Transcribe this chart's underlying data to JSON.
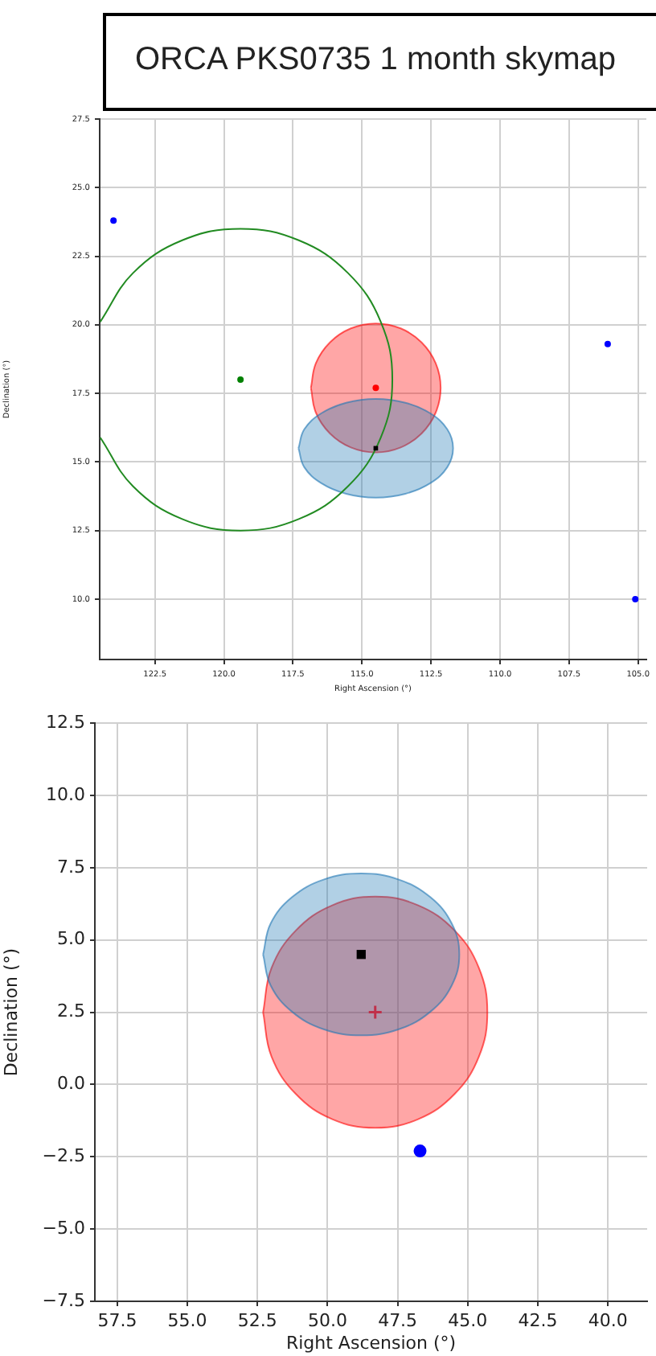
{
  "chart_data": [
    {
      "type": "scatter",
      "title": "ORCA PKS0735 1 month skymap",
      "xlabel": "Right Ascension (°)",
      "ylabel": "Declination (°)",
      "grid": true,
      "xlim": [
        124.5,
        104.7
      ],
      "ylim": [
        7.8,
        27.5
      ],
      "xticks": [
        {
          "value": 122.5,
          "label": "122.5"
        },
        {
          "value": 120,
          "label": "120.0"
        },
        {
          "value": 117.5,
          "label": "117.5"
        },
        {
          "value": 115,
          "label": "115.0"
        },
        {
          "value": 112.5,
          "label": "112.5"
        },
        {
          "value": 110,
          "label": "110.0"
        },
        {
          "value": 107.5,
          "label": "107.5"
        },
        {
          "value": 105,
          "label": "105.0"
        }
      ],
      "yticks": [
        {
          "value": 10,
          "label": "10.0"
        },
        {
          "value": 12.5,
          "label": "12.5"
        },
        {
          "value": 15,
          "label": "15.0"
        },
        {
          "value": 17.5,
          "label": "17.5"
        },
        {
          "value": 20,
          "label": "20.0"
        },
        {
          "value": 22.5,
          "label": "22.5"
        },
        {
          "value": 25,
          "label": "25.0"
        },
        {
          "value": 27.5,
          "label": "27.5"
        }
      ],
      "series": [
        {
          "type": "area",
          "color": "#1f77b4",
          "x": [
            117.3,
            117.09,
            116.48,
            115.57,
            114.5,
            113.43,
            112.52,
            111.91,
            111.7,
            111.91,
            112.52,
            113.43,
            114.5,
            115.57,
            116.48,
            117.09,
            117.3
          ],
          "values": [
            15.5,
            16.19,
            16.77,
            17.16,
            17.3,
            17.16,
            16.77,
            16.19,
            15.5,
            14.81,
            14.23,
            13.84,
            13.7,
            13.84,
            14.23,
            14.81,
            15.5
          ]
        },
        {
          "type": "area",
          "color": "#ff0000",
          "x": [
            116.85,
            116.67,
            116.16,
            115.4,
            114.5,
            113.6,
            112.84,
            112.33,
            112.15,
            112.33,
            112.84,
            113.6,
            114.5,
            115.4,
            116.16,
            116.67,
            116.85
          ],
          "values": [
            17.7,
            18.6,
            19.36,
            19.87,
            20.05,
            19.87,
            19.36,
            18.6,
            17.7,
            16.8,
            16.04,
            15.53,
            15.35,
            15.53,
            16.04,
            16.8,
            17.7
          ]
        },
        {
          "type": "line",
          "color": "#228b22",
          "x": [
            124.48,
            123.29,
            121.51,
            119.4,
            117.29,
            115.51,
            114.32,
            113.9,
            114.32,
            115.51,
            117.29,
            119.4,
            121.51,
            123.29,
            124.48
          ],
          "values": [
            20.11,
            21.89,
            23.08,
            23.5,
            23.08,
            21.89,
            20.11,
            18.0,
            15.89,
            14.11,
            12.92,
            12.5,
            12.92,
            14.11,
            15.89
          ]
        },
        {
          "color": "#0000ff",
          "x": [
            124.0,
            106.1,
            105.1
          ],
          "values": [
            23.8,
            19.3,
            10.0
          ],
          "marker": "circle"
        },
        {
          "color": "#008000",
          "x": [
            119.4
          ],
          "values": [
            18.0
          ],
          "marker": "circle"
        },
        {
          "color": "#ff0000",
          "x": [
            114.5
          ],
          "values": [
            17.7
          ],
          "marker": "circle"
        },
        {
          "color": "#000000",
          "x": [
            114.5
          ],
          "values": [
            15.5
          ],
          "marker": "square"
        }
      ]
    },
    {
      "type": "scatter",
      "xlabel": "Right Ascension (°)",
      "ylabel": "Declination (°)",
      "grid": true,
      "xlim": [
        58.3,
        38.6
      ],
      "ylim": [
        -7.5,
        12.5
      ],
      "xticks": [
        {
          "value": 57.5,
          "label": "57.5"
        },
        {
          "value": 55,
          "label": "55.0"
        },
        {
          "value": 52.5,
          "label": "52.5"
        },
        {
          "value": 50,
          "label": "50.0"
        },
        {
          "value": 47.5,
          "label": "47.5"
        },
        {
          "value": 45,
          "label": "45.0"
        },
        {
          "value": 42.5,
          "label": "42.5"
        },
        {
          "value": 40,
          "label": "40.0"
        }
      ],
      "yticks": [
        {
          "value": -7.5,
          "label": "−7.5"
        },
        {
          "value": -5,
          "label": "−5.0"
        },
        {
          "value": -2.5,
          "label": "−2.5"
        },
        {
          "value": 0,
          "label": "0.0"
        },
        {
          "value": 2.5,
          "label": "2.5"
        },
        {
          "value": 5,
          "label": "5.0"
        },
        {
          "value": 7.5,
          "label": "7.5"
        },
        {
          "value": 10,
          "label": "10.0"
        },
        {
          "value": 12.5,
          "label": "12.5"
        }
      ],
      "series": [
        {
          "type": "area",
          "color": "#1f77b4",
          "x": [
            52.3,
            52.03,
            51.27,
            50.14,
            48.8,
            47.46,
            46.33,
            45.57,
            45.3,
            45.57,
            46.33,
            47.46,
            48.8,
            50.14,
            51.27,
            52.03,
            52.3
          ],
          "values": [
            4.5,
            5.57,
            6.48,
            7.09,
            7.3,
            7.09,
            6.48,
            5.57,
            4.5,
            3.43,
            2.52,
            1.91,
            1.7,
            1.91,
            2.52,
            3.43,
            4.5
          ]
        },
        {
          "type": "area",
          "color": "#ff0000",
          "x": [
            52.3,
            52.0,
            51.13,
            49.83,
            48.3,
            46.77,
            45.47,
            44.6,
            44.3,
            44.6,
            45.47,
            46.77,
            48.3,
            49.83,
            51.13,
            52.0,
            52.3
          ],
          "values": [
            2.5,
            4.03,
            5.33,
            6.2,
            6.5,
            6.2,
            5.33,
            4.03,
            2.5,
            0.97,
            -0.33,
            -1.2,
            -1.5,
            -1.2,
            -0.33,
            0.97,
            2.5
          ]
        },
        {
          "color": "#0000ff",
          "x": [
            46.7
          ],
          "values": [
            -2.3
          ],
          "marker": "circle"
        },
        {
          "color": "#000000",
          "x": [
            48.8
          ],
          "values": [
            4.5
          ],
          "marker": "square"
        },
        {
          "color": "#c0304a",
          "x": [
            48.3
          ],
          "values": [
            2.5
          ],
          "marker": "cross"
        }
      ]
    }
  ]
}
